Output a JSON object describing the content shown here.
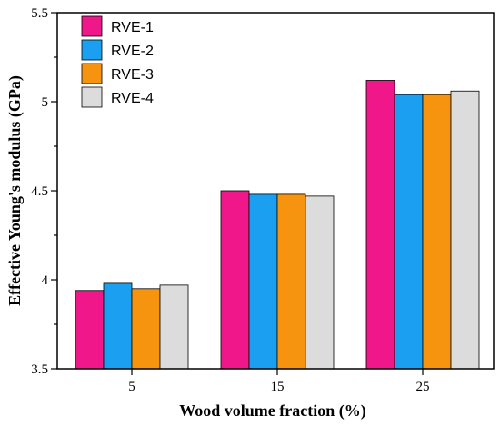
{
  "chart_data": {
    "type": "bar",
    "title": "",
    "xlabel": "Wood volume fraction (%)",
    "ylabel": "Effective Young's modulus (GPa)",
    "categories": [
      "5",
      "15",
      "25"
    ],
    "ylim": [
      3.5,
      5.5
    ],
    "yticks": [
      "3.5",
      "4",
      "4.5",
      "5",
      "5.5"
    ],
    "grid": false,
    "legend_position": "top-left",
    "series": [
      {
        "name": "RVE-1",
        "color": "#f0178a",
        "values": [
          3.94,
          4.5,
          5.12
        ]
      },
      {
        "name": "RVE-2",
        "color": "#1b9ff0",
        "values": [
          3.98,
          4.48,
          5.04
        ]
      },
      {
        "name": "RVE-3",
        "color": "#f7940f",
        "values": [
          3.95,
          4.48,
          5.04
        ]
      },
      {
        "name": "RVE-4",
        "color": "#dcdcdc",
        "values": [
          3.97,
          4.47,
          5.06
        ]
      }
    ]
  }
}
